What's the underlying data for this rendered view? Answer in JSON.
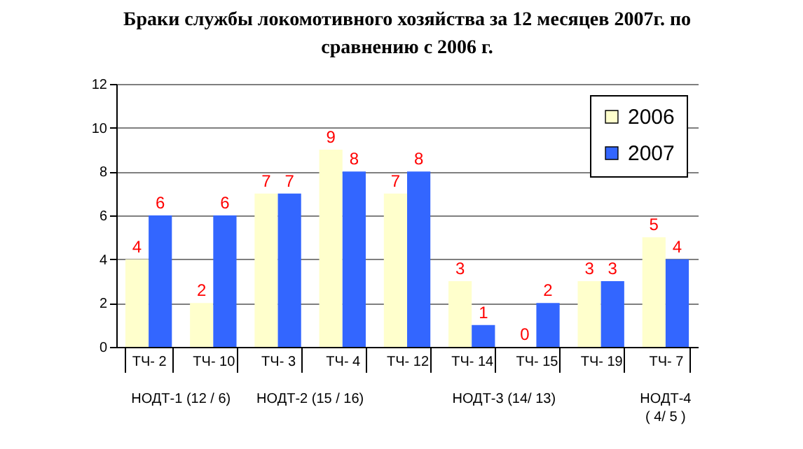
{
  "chart_data": {
    "type": "bar",
    "title": "Браки службы локомотивного хозяйства за 12 месяцев 2007г. по сравнению с 2006 г.",
    "categories": [
      "ТЧ- 2",
      "ТЧ- 10",
      "ТЧ- 3",
      "ТЧ- 4",
      "ТЧ- 12",
      "ТЧ- 14",
      "ТЧ- 15",
      "ТЧ- 19",
      "ТЧ- 7"
    ],
    "series": [
      {
        "name": "2006",
        "color": "#ffffcc",
        "values": [
          4,
          2,
          7,
          9,
          7,
          3,
          0,
          3,
          5
        ]
      },
      {
        "name": "2007",
        "color": "#3366ff",
        "values": [
          6,
          6,
          7,
          8,
          8,
          1,
          2,
          3,
          4
        ]
      }
    ],
    "annotations": [
      "НОДТ-1 (12 / 6)",
      "НОДТ-2 (15 / 16)",
      "НОДТ-3 (14/ 13)",
      "НОДТ-4\n( 4/ 5 )"
    ],
    "ylim": [
      0,
      12
    ],
    "yticks": [
      0,
      2,
      4,
      6,
      8,
      10,
      12
    ],
    "grid": "y",
    "legend": "top right",
    "data_labels": true
  }
}
